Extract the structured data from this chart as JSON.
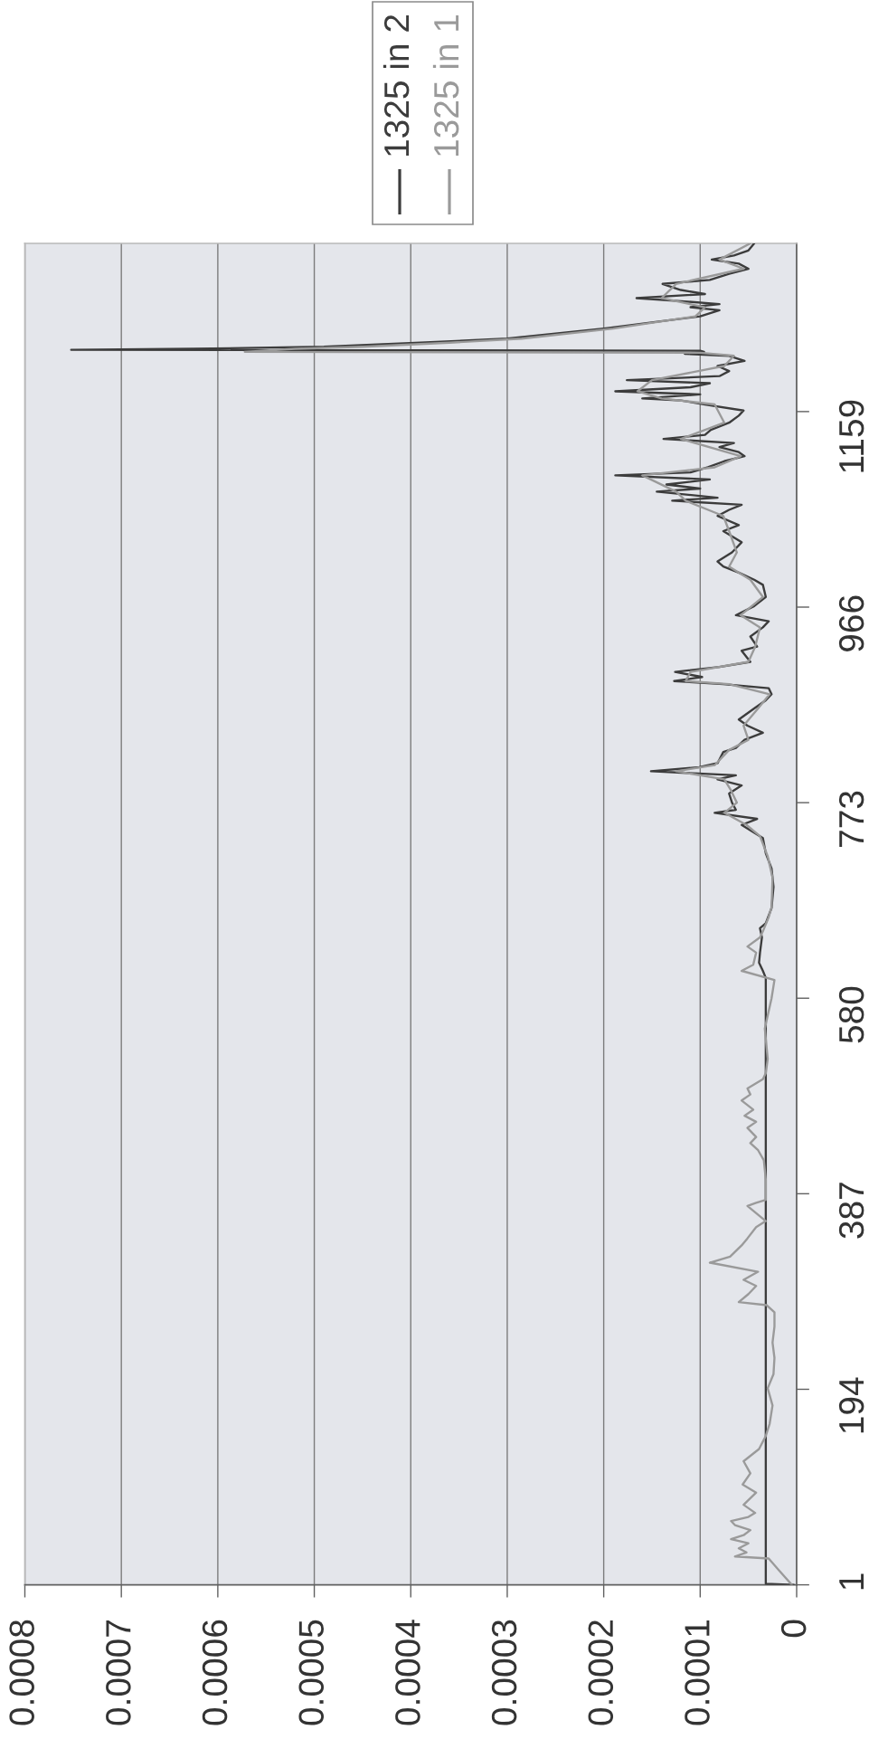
{
  "chart_data": {
    "type": "line",
    "orientation": "horizontal",
    "xlim": [
      0.0008,
      0
    ],
    "xticks": [
      0.0008,
      0.0007,
      0.0006,
      0.0005,
      0.0004,
      0.0003,
      0.0002,
      0.0001,
      0
    ],
    "ylim": [
      1,
      1325
    ],
    "yticks": [
      1,
      194,
      387,
      580,
      773,
      966,
      1159
    ],
    "grid": "x",
    "legend": "top",
    "line_style": "solid",
    "series": [
      {
        "name": "1325 in 2",
        "color": "#3c3c3c",
        "x": [
          1,
          2,
          300,
          600,
          607,
          615,
          625,
          640,
          649,
          654,
          669,
          690,
          708,
          723,
          738,
          751,
          757,
          763,
          766,
          773,
          782,
          790,
          796,
          800,
          804,
          808,
          812,
          823,
          827,
          835,
          842,
          849,
          855,
          866,
          874,
          880,
          886,
          890,
          893,
          897,
          902,
          907,
          912,
          923,
          927,
          937,
          946,
          952,
          958,
          967,
          976,
          988,
          993,
          1000,
          1006,
          1011,
          1020,
          1030,
          1041,
          1047,
          1056,
          1062,
          1067,
          1071,
          1074,
          1080,
          1083,
          1087,
          1092,
          1096,
          1099,
          1104,
          1110,
          1115,
          1119,
          1124,
          1128,
          1132,
          1136,
          1141,
          1148,
          1155,
          1160,
          1166,
          1170,
          1172,
          1176,
          1179,
          1183,
          1187,
          1190,
          1194,
          1199,
          1204,
          1209,
          1214,
          1216,
          1218,
          1219,
          1220,
          1221,
          1223,
          1227,
          1231,
          1241,
          1253,
          1259,
          1262,
          1265,
          1268,
          1271,
          1275,
          1279,
          1285,
          1289,
          1295,
          1300,
          1305,
          1309,
          1313,
          1318,
          1325
        ],
        "values": [
          3e-06,
          3.2e-05,
          3.2e-05,
          3.2e-05,
          3.5e-05,
          3.9e-05,
          3.8e-05,
          3.6e-05,
          3.8e-05,
          3.2e-05,
          2.6e-05,
          2.4e-05,
          2.6e-05,
          3.2e-05,
          3.5e-05,
          5.7e-05,
          4.1e-05,
          8.5e-05,
          6.3e-05,
          6.7e-05,
          7e-05,
          5.7e-05,
          8.2e-05,
          6.3e-05,
          0.000151,
          0.000101,
          8.2e-05,
          7.6e-05,
          6.3e-05,
          5.4e-05,
          3.5e-05,
          5.1e-05,
          6e-05,
          4.4e-05,
          3.2e-05,
          2.6e-05,
          2.9e-05,
          7.6e-05,
          0.000127,
          9.8e-05,
          0.000126,
          8e-05,
          4.8e-05,
          5.7e-05,
          4.1e-05,
          4.8e-05,
          3.5e-05,
          2.9e-05,
          6.3e-05,
          4.4e-05,
          3.2e-05,
          3.5e-05,
          4.4e-05,
          6e-05,
          7.6e-05,
          8.2e-05,
          6.7e-05,
          5.7e-05,
          7.6e-05,
          6e-05,
          8.2e-05,
          7e-05,
          5.7e-05,
          0.000129,
          8.2e-05,
          0.000145,
          0.0001,
          0.000135,
          9e-05,
          0.000188,
          0.00011,
          9.2e-05,
          7.5e-05,
          5.4e-05,
          6e-05,
          8e-05,
          6.5e-05,
          0.000138,
          9.5e-05,
          8.9e-05,
          7e-05,
          6e-05,
          5.5e-05,
          9.5e-05,
          0.00012,
          0.00016,
          0.0001,
          0.000188,
          0.00011,
          9e-05,
          0.000176,
          8e-05,
          7e-05,
          8.2e-05,
          5.4e-05,
          7e-05,
          0.000116,
          9.6e-05,
          0.0001,
          0.000752,
          0.000625,
          0.00049,
          0.00039,
          0.0003,
          0.0002,
          0.0001,
          8e-05,
          0.00011,
          8e-05,
          0.00012,
          0.000166,
          9.5e-05,
          0.00012,
          0.000139,
          9e-05,
          7e-05,
          5e-05,
          6e-05,
          8.8e-05,
          6.5e-05,
          5e-05,
          4.4e-05
        ]
      },
      {
        "name": "1325 in 1",
        "color": "#9a9a9a",
        "x": [
          1,
          15,
          27,
          29,
          33,
          37,
          42,
          46,
          50,
          55,
          60,
          64,
          68,
          72,
          80,
          92,
          100,
          111,
          123,
          135,
          148,
          160,
          178,
          195,
          209,
          225,
          240,
          256,
          270,
          277,
          280,
          288,
          296,
          302,
          310,
          319,
          325,
          336,
          343,
          354,
          360,
          375,
          378,
          381,
          401,
          420,
          430,
          437,
          443,
          452,
          458,
          464,
          470,
          479,
          485,
          491,
          500,
          506,
          520,
          550,
          580,
          598,
          607,
          613,
          625,
          631,
          640,
          646,
          660,
          670,
          699,
          720,
          740,
          751,
          763,
          773,
          785,
          796,
          804,
          810,
          825,
          835,
          849,
          866,
          880,
          890,
          893,
          902,
          912,
          927,
          946,
          958,
          976,
          993,
          1006,
          1020,
          1041,
          1056,
          1071,
          1080,
          1096,
          1104,
          1115,
          1132,
          1148,
          1166,
          1172,
          1179,
          1190,
          1204,
          1214,
          1217,
          1218,
          1221,
          1223,
          1227,
          1231,
          1241,
          1253,
          1262,
          1271,
          1285,
          1300,
          1309,
          1325
        ],
        "values": [
          5e-06,
          1.8e-05,
          2.9e-05,
          6.4e-05,
          5.2e-05,
          6e-05,
          5e-05,
          6.8e-05,
          5.5e-05,
          4.8e-05,
          6.4e-05,
          6.8e-05,
          5e-05,
          4.3e-05,
          5.5e-05,
          4.2e-05,
          5.6e-05,
          4.8e-05,
          5.5e-05,
          3.9e-05,
          3.2e-05,
          2.8e-05,
          2.5e-05,
          3e-05,
          2.4e-05,
          2.3e-05,
          2.5e-05,
          2.3e-05,
          2.3e-05,
          3.1e-05,
          6e-05,
          5e-05,
          4.2e-05,
          5.5e-05,
          4e-05,
          9e-05,
          6.9e-05,
          5.7e-05,
          5.1e-05,
          4.2e-05,
          3.2e-05,
          5.1e-05,
          4.2e-05,
          3.2e-05,
          3.2e-05,
          3.4e-05,
          4e-05,
          4.8e-05,
          4.2e-05,
          5.1e-05,
          4.2e-05,
          5.4e-05,
          4.5e-05,
          5.7e-05,
          4.8e-05,
          5.1e-05,
          3.5e-05,
          3.2e-05,
          3e-05,
          3.3e-05,
          2.6e-05,
          2.3e-05,
          5.7e-05,
          4.5e-05,
          4.2e-05,
          5.1e-05,
          3.8e-05,
          3.5e-05,
          2.9e-05,
          2.6e-05,
          2.5e-05,
          3e-05,
          3.8e-05,
          5.2e-05,
          7.5e-05,
          6.2e-05,
          6.8e-05,
          7.5e-05,
          0.000125,
          8.5e-05,
          7e-05,
          5e-05,
          5.5e-05,
          4e-05,
          2.8e-05,
          7e-05,
          0.000115,
          0.00011,
          5e-05,
          4.3e-05,
          3.8e-05,
          5.8e-05,
          3.5e-05,
          4.8e-05,
          7e-05,
          6.2e-05,
          7e-05,
          7.6e-05,
          0.000115,
          0.000125,
          0.00016,
          8.5e-05,
          5.8e-05,
          0.00012,
          7.5e-05,
          8.5e-05,
          0.00014,
          0.000165,
          0.00015,
          7.5e-05,
          6.5e-05,
          0.0001,
          0.000572,
          0.00052,
          0.00045,
          0.00036,
          0.000285,
          0.00019,
          0.000105,
          9.5e-05,
          0.00014,
          0.000125,
          5.5e-05,
          8e-05,
          4.8e-05
        ]
      }
    ]
  }
}
